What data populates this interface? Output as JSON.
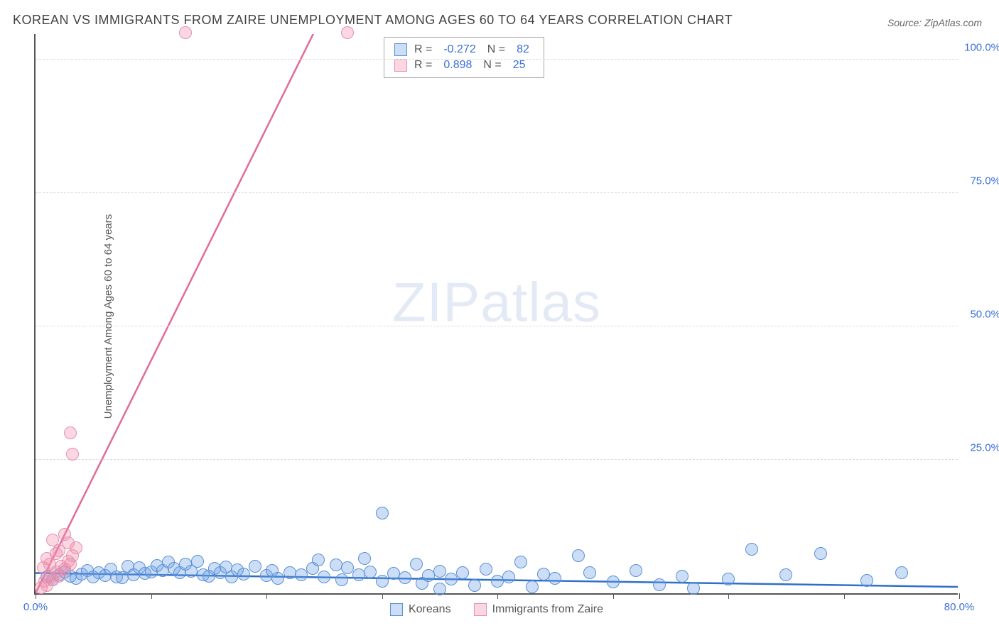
{
  "title": "KOREAN VS IMMIGRANTS FROM ZAIRE UNEMPLOYMENT AMONG AGES 60 TO 64 YEARS CORRELATION CHART",
  "source": "Source: ZipAtlas.com",
  "ylabel": "Unemployment Among Ages 60 to 64 years",
  "watermark_a": "ZIP",
  "watermark_b": "atlas",
  "chart": {
    "type": "scatter",
    "xlim": [
      0,
      80
    ],
    "ylim": [
      0,
      105
    ],
    "background_color": "#ffffff",
    "grid_color": "#dddddd",
    "axis_color": "#555555",
    "tick_label_color": "#3a6fd8",
    "xticks": [
      0,
      10,
      20,
      30,
      40,
      50,
      60,
      70,
      80
    ],
    "xtick_labels": {
      "0": "0.0%",
      "80": "80.0%"
    },
    "yticks": [
      25,
      50,
      75,
      100
    ],
    "ytick_labels": {
      "25": "25.0%",
      "50": "50.0%",
      "75": "75.0%",
      "100": "100.0%"
    },
    "marker_radius": 9,
    "marker_border_width": 1.5,
    "line_width": 2.5
  },
  "series": [
    {
      "name": "Koreans",
      "fill": "rgba(110,160,230,0.35)",
      "stroke": "#5a8fd6",
      "line_color": "#2f6fc9",
      "R": "-0.272",
      "N": "82",
      "trend": {
        "x1": 0,
        "y1": 3.8,
        "x2": 80,
        "y2": 1.2
      },
      "points": [
        [
          1,
          3
        ],
        [
          1.5,
          2.5
        ],
        [
          2,
          3.5
        ],
        [
          2.5,
          4
        ],
        [
          3,
          3.2
        ],
        [
          3.5,
          2.8
        ],
        [
          4,
          3.6
        ],
        [
          4.5,
          4.2
        ],
        [
          5,
          3
        ],
        [
          5.5,
          3.8
        ],
        [
          6,
          3.3
        ],
        [
          6.5,
          4.5
        ],
        [
          7,
          3.1
        ],
        [
          7.5,
          2.9
        ],
        [
          8,
          5
        ],
        [
          8.5,
          3.4
        ],
        [
          9,
          4.8
        ],
        [
          9.5,
          3.7
        ],
        [
          10,
          4
        ],
        [
          10.5,
          5.2
        ],
        [
          11,
          4.3
        ],
        [
          11.5,
          5.8
        ],
        [
          12,
          4.6
        ],
        [
          12.5,
          3.9
        ],
        [
          13,
          5.5
        ],
        [
          13.5,
          4.1
        ],
        [
          14,
          6
        ],
        [
          14.5,
          3.5
        ],
        [
          15,
          3.2
        ],
        [
          15.5,
          4.7
        ],
        [
          16,
          3.8
        ],
        [
          16.5,
          4.9
        ],
        [
          17,
          3
        ],
        [
          17.5,
          4.4
        ],
        [
          18,
          3.6
        ],
        [
          19,
          5.1
        ],
        [
          20,
          3.3
        ],
        [
          20.5,
          4.2
        ],
        [
          21,
          2.8
        ],
        [
          22,
          3.9
        ],
        [
          23,
          3.5
        ],
        [
          24,
          4.6
        ],
        [
          24.5,
          6.2
        ],
        [
          25,
          3.1
        ],
        [
          26,
          5.3
        ],
        [
          26.5,
          2.5
        ],
        [
          27,
          4.8
        ],
        [
          28,
          3.4
        ],
        [
          28.5,
          6.5
        ],
        [
          29,
          4
        ],
        [
          30,
          2.2
        ],
        [
          30,
          15
        ],
        [
          31,
          3.7
        ],
        [
          32,
          2.9
        ],
        [
          33,
          5.5
        ],
        [
          33.5,
          1.8
        ],
        [
          34,
          3.3
        ],
        [
          35,
          4.1
        ],
        [
          35,
          0.8
        ],
        [
          36,
          2.6
        ],
        [
          37,
          3.8
        ],
        [
          38,
          1.5
        ],
        [
          39,
          4.5
        ],
        [
          40,
          2.3
        ],
        [
          41,
          3.1
        ],
        [
          42,
          5.8
        ],
        [
          43,
          1.2
        ],
        [
          44,
          3.6
        ],
        [
          45,
          2.8
        ],
        [
          47,
          7
        ],
        [
          48,
          3.9
        ],
        [
          50,
          2.1
        ],
        [
          52,
          4.3
        ],
        [
          54,
          1.6
        ],
        [
          56,
          3.2
        ],
        [
          57,
          0.9
        ],
        [
          60,
          2.7
        ],
        [
          62,
          8.2
        ],
        [
          65,
          3.5
        ],
        [
          68,
          7.5
        ],
        [
          72,
          2.4
        ],
        [
          75,
          3.8
        ]
      ]
    },
    {
      "name": "Immigrants from Zaire",
      "fill": "rgba(240,140,170,0.35)",
      "stroke": "#e68fb0",
      "line_color": "#e26a9a",
      "R": "0.898",
      "N": "25",
      "trend": {
        "x1": 0,
        "y1": 0,
        "x2": 25,
        "y2": 109
      },
      "points": [
        [
          0.5,
          1
        ],
        [
          0.8,
          2.2
        ],
        [
          1,
          1.5
        ],
        [
          1.2,
          3
        ],
        [
          1.5,
          2.5
        ],
        [
          1.8,
          4
        ],
        [
          2,
          3.2
        ],
        [
          2.2,
          5
        ],
        [
          2.5,
          4.5
        ],
        [
          2.8,
          6
        ],
        [
          3,
          5.5
        ],
        [
          3.2,
          7
        ],
        [
          3.5,
          8.5
        ],
        [
          1.5,
          10
        ],
        [
          2,
          8
        ],
        [
          2.8,
          9.5
        ],
        [
          1,
          6.5
        ],
        [
          0.7,
          4.8
        ],
        [
          1.8,
          7.5
        ],
        [
          2.5,
          11
        ],
        [
          1.2,
          5.5
        ],
        [
          3,
          30
        ],
        [
          3.2,
          26
        ],
        [
          13,
          105
        ],
        [
          27,
          105
        ]
      ]
    }
  ],
  "legend": {
    "r_label": "R =",
    "n_label": "N ="
  }
}
